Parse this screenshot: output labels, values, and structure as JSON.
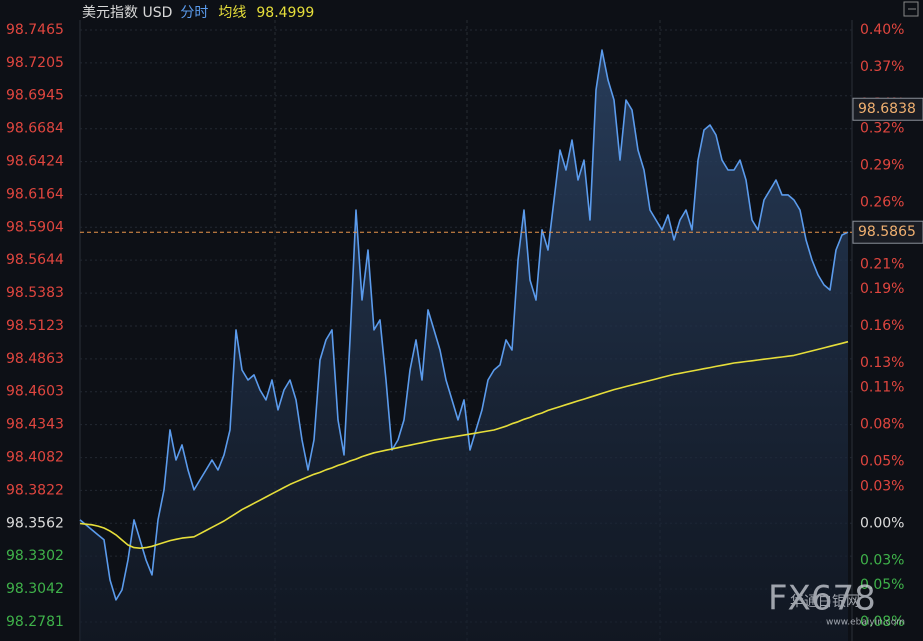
{
  "chart_data": {
    "type": "line",
    "title": "美元指数 USD",
    "series": [
      {
        "name": "分时",
        "color": "#5b9bec",
        "values": [
          98.3589,
          98.3549,
          98.351,
          98.347,
          98.3431,
          98.3114,
          98.2956,
          98.3035,
          98.3272,
          98.3589,
          98.3431,
          98.3272,
          98.3154,
          98.3589,
          98.3826,
          98.4301,
          98.4063,
          98.4182,
          98.3984,
          98.3826,
          98.3905,
          98.3984,
          98.4063,
          98.3984,
          98.4103,
          98.4301,
          98.5092,
          98.4775,
          98.4696,
          98.4736,
          98.4617,
          98.4538,
          98.4696,
          98.4459,
          98.4617,
          98.4696,
          98.4538,
          98.4222,
          98.3984,
          98.4222,
          98.4854,
          98.5013,
          98.5092,
          98.438,
          98.4103,
          98.5013,
          98.6041,
          98.5329,
          98.5724,
          98.5092,
          98.5171,
          98.4696,
          98.4142,
          98.4222,
          98.438,
          98.4775,
          98.5013,
          98.4696,
          98.525,
          98.5092,
          98.4933,
          98.4696,
          98.4538,
          98.438,
          98.4538,
          98.4142,
          98.4301,
          98.4459,
          98.4696,
          98.4775,
          98.4815,
          98.5013,
          98.4933,
          98.5645,
          98.6041,
          98.5487,
          98.5329,
          98.5883,
          98.5724,
          98.612,
          98.6515,
          98.6357,
          98.6595,
          98.6278,
          98.6436,
          98.5962,
          98.699,
          98.7306,
          98.7069,
          98.6911,
          98.6436,
          98.6911,
          98.6832,
          98.6515,
          98.6357,
          98.6041,
          98.5962,
          98.5883,
          98.6001,
          98.5804,
          98.5962,
          98.6041,
          98.5883,
          98.6436,
          98.6674,
          98.6713,
          98.6634,
          98.6436,
          98.6357,
          98.6357,
          98.6436,
          98.6278,
          98.5962,
          98.5883,
          98.612,
          98.6199,
          98.6278,
          98.616,
          98.616,
          98.612,
          98.6041,
          98.5804,
          98.5645,
          98.5527,
          98.5448,
          98.5408,
          98.5724,
          98.5843,
          98.5865
        ]
      },
      {
        "name": "均线",
        "color": "#e6de3a",
        "values": [
          98.356,
          98.3555,
          98.355,
          98.354,
          98.3525,
          98.35,
          98.347,
          98.343,
          98.339,
          98.337,
          98.3365,
          98.337,
          98.338,
          98.3395,
          98.341,
          98.3425,
          98.3435,
          98.3445,
          98.345,
          98.3455,
          98.348,
          98.3505,
          98.353,
          98.3555,
          98.358,
          98.361,
          98.364,
          98.367,
          98.3695,
          98.372,
          98.3745,
          98.377,
          98.3795,
          98.382,
          98.3845,
          98.387,
          98.389,
          98.391,
          98.393,
          98.395,
          98.3965,
          98.3985,
          98.4,
          98.402,
          98.4035,
          98.4055,
          98.407,
          98.409,
          98.4105,
          98.412,
          98.413,
          98.414,
          98.415,
          98.416,
          98.417,
          98.418,
          98.419,
          98.42,
          98.421,
          98.422,
          98.4228,
          98.4236,
          98.4244,
          98.4252,
          98.426,
          98.4268,
          98.4276,
          98.4284,
          98.4292,
          98.43,
          98.4315,
          98.433,
          98.435,
          98.4365,
          98.4385,
          98.44,
          98.442,
          98.4435,
          98.4455,
          98.447,
          98.4485,
          98.45,
          98.4515,
          98.453,
          98.4545,
          98.456,
          98.4575,
          98.459,
          98.4605,
          98.462,
          98.4632,
          98.4644,
          98.4656,
          98.4668,
          98.468,
          98.4692,
          98.4704,
          98.4716,
          98.4728,
          98.474,
          98.4749,
          98.4758,
          98.4767,
          98.4776,
          98.4785,
          98.4794,
          98.4803,
          98.4812,
          98.4821,
          98.483,
          98.4836,
          98.4842,
          98.4848,
          98.4854,
          98.486,
          98.4866,
          98.4872,
          98.4878,
          98.4884,
          98.489,
          98.4902,
          98.4914,
          98.4926,
          98.4938,
          98.495,
          98.4962,
          98.4974,
          98.4986,
          98.4999
        ]
      }
    ],
    "ylim": [
      98.2781,
      98.7465
    ],
    "yticks": [
      98.7465,
      98.7205,
      98.6945,
      98.6684,
      98.6424,
      98.6164,
      98.5904,
      98.5644,
      98.5383,
      98.5123,
      98.4863,
      98.4603,
      98.4343,
      98.4082,
      98.3822,
      98.3562,
      98.3302,
      98.3042,
      98.2781
    ],
    "y2lim": [
      -0.08,
      0.4
    ],
    "y2ticks": [
      {
        "value": 0.4,
        "label": "0.40%"
      },
      {
        "value": 0.37,
        "label": "0.37%"
      },
      {
        "value": 0.34,
        "label": "0.34%"
      },
      {
        "value": 0.32,
        "label": "0.32%"
      },
      {
        "value": 0.29,
        "label": "0.29%"
      },
      {
        "value": 0.26,
        "label": "0.26%"
      },
      {
        "value": 0.24,
        "label": "0.24%"
      },
      {
        "value": 0.21,
        "label": "0.21%"
      },
      {
        "value": 0.19,
        "label": "0.19%"
      },
      {
        "value": 0.16,
        "label": "0.16%"
      },
      {
        "value": 0.13,
        "label": "0.13%"
      },
      {
        "value": 0.11,
        "label": "0.11%"
      },
      {
        "value": 0.08,
        "label": "0.08%"
      },
      {
        "value": 0.05,
        "label": "0.05%"
      },
      {
        "value": 0.03,
        "label": "0.03%"
      },
      {
        "value": 0.0,
        "label": "0.00%"
      },
      {
        "value": -0.03,
        "label": "0.03%"
      },
      {
        "value": -0.05,
        "label": "0.05%"
      },
      {
        "value": -0.08,
        "label": "0.08%"
      }
    ],
    "grid": true,
    "annotations": [
      {
        "value": 98.6838
      }
    ],
    "watermark": [
      "FX678",
      "华通白银网",
      "www.ebaiyin.com"
    ]
  }
}
